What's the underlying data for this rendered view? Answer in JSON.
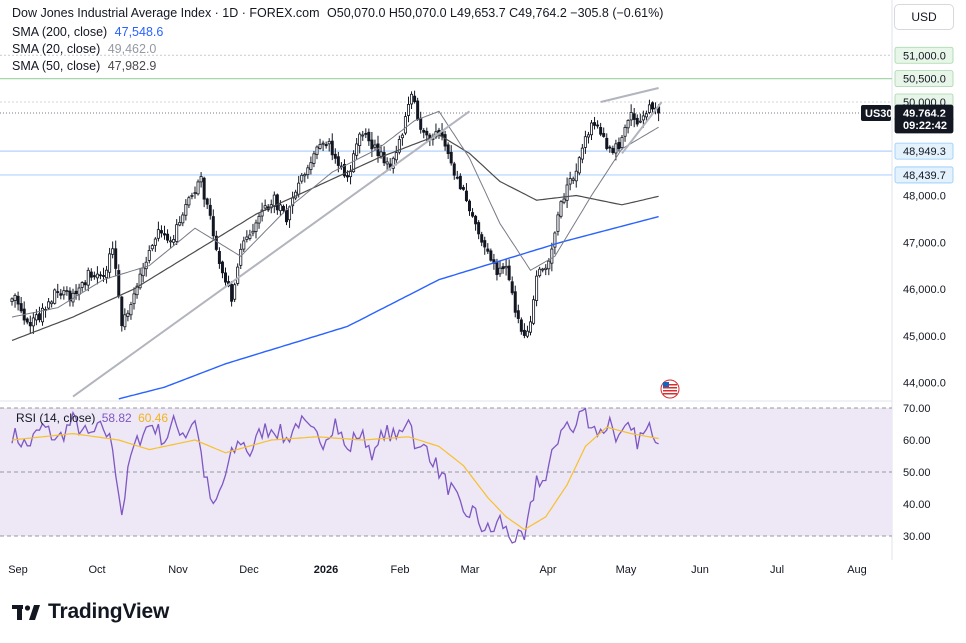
{
  "header": {
    "title": "Dow Jones Industrial Average Index · 1D · FOREX.com",
    "ohlc": "O50,070.0  H50,070.0  L49,653.7  C49,764.2  −305.8 (−0.61%)",
    "sma200_label": "SMA (200, close)",
    "sma200_value": "47,548.6",
    "sma20_label": "SMA (20, close)",
    "sma20_value": "49,462.0",
    "sma50_label": "SMA (50, close)",
    "sma50_value": "47,982.9",
    "currency": "USD"
  },
  "rsi_header": {
    "label": "RSI (14, close)",
    "value": "58.82",
    "ma_value": "60.46"
  },
  "branding": {
    "name": "TradingView"
  },
  "colors": {
    "candle": "#131722",
    "sma200": "#2962ff",
    "sma20": "#787b86",
    "sma50": "#4c4c4c",
    "rsi": "#7e57c2",
    "rsi_ma": "#f7c02d",
    "rsi_band": "#ede7f6",
    "level_line": "#b2d3ff"
  },
  "chart_data": [
    {
      "type": "candlestick",
      "title": "Dow Jones Industrial Average Index · 1D · FOREX.com",
      "x_tick_labels": [
        "Sep",
        "Oct",
        "Nov",
        "Dec",
        "2026",
        "Feb",
        "Mar",
        "Apr",
        "May",
        "Jun",
        "Jul",
        "Aug"
      ],
      "y_tick_labels": [
        "44,000.0",
        "45,000.0",
        "46,000.0",
        "47,000.0",
        "48,000.0"
      ],
      "ylim": [
        43700,
        51400
      ],
      "price_labels": [
        {
          "text": "51,000.0",
          "value": 51000,
          "style": "green"
        },
        {
          "text": "50,500.0",
          "value": 50500,
          "style": "green"
        },
        {
          "text": "50,000.0",
          "value": 50000,
          "style": "green"
        },
        {
          "text": "49,764.2",
          "value": 49764.2,
          "style": "dark"
        },
        {
          "text": "09:22:42",
          "value": 49764.2,
          "style": "dark"
        },
        {
          "text": "48,949.3",
          "value": 48949.3,
          "style": "blue"
        },
        {
          "text": "48,439.7",
          "value": 48439.7,
          "style": "blue"
        }
      ],
      "symbol_label": "US30",
      "horizontal_levels": [
        {
          "value": 50500,
          "color": "#a5d6a7"
        },
        {
          "value": 48949.3,
          "color": "#b2d3ff"
        },
        {
          "value": 48439.7,
          "color": "#b2d3ff"
        }
      ],
      "close_keypoints": [
        [
          0,
          45900
        ],
        [
          5,
          45200
        ],
        [
          10,
          45500
        ],
        [
          15,
          46000
        ],
        [
          20,
          45800
        ],
        [
          25,
          46300
        ],
        [
          30,
          46200
        ],
        [
          33,
          46900
        ],
        [
          36,
          45200
        ],
        [
          40,
          45900
        ],
        [
          45,
          46800
        ],
        [
          48,
          47200
        ],
        [
          52,
          47000
        ],
        [
          55,
          47500
        ],
        [
          58,
          47900
        ],
        [
          62,
          48300
        ],
        [
          66,
          47200
        ],
        [
          69,
          46300
        ],
        [
          72,
          45800
        ],
        [
          75,
          46900
        ],
        [
          78,
          47200
        ],
        [
          82,
          47700
        ],
        [
          86,
          47900
        ],
        [
          90,
          47500
        ],
        [
          94,
          48200
        ],
        [
          98,
          48700
        ],
        [
          102,
          49200
        ],
        [
          106,
          48900
        ],
        [
          110,
          48300
        ],
        [
          113,
          49200
        ],
        [
          116,
          49300
        ],
        [
          120,
          48900
        ],
        [
          124,
          48600
        ],
        [
          128,
          49300
        ],
        [
          131,
          50200
        ],
        [
          134,
          49500
        ],
        [
          137,
          49200
        ],
        [
          140,
          49300
        ],
        [
          143,
          48900
        ],
        [
          146,
          48300
        ],
        [
          149,
          47900
        ],
        [
          152,
          47400
        ],
        [
          156,
          46800
        ],
        [
          159,
          46400
        ],
        [
          162,
          46500
        ],
        [
          165,
          45600
        ],
        [
          167,
          45000
        ],
        [
          170,
          45200
        ],
        [
          172,
          46300
        ],
        [
          175,
          46500
        ],
        [
          177,
          46900
        ],
        [
          179,
          47600
        ],
        [
          182,
          48200
        ],
        [
          185,
          48500
        ],
        [
          188,
          49200
        ],
        [
          191,
          49600
        ],
        [
          194,
          49200
        ],
        [
          197,
          48900
        ],
        [
          200,
          49200
        ],
        [
          203,
          49700
        ],
        [
          206,
          49500
        ],
        [
          209,
          49900
        ],
        [
          212,
          49764.2
        ]
      ],
      "series": [
        {
          "name": "SMA (200, close)",
          "keypoints": [
            [
              35,
              43650
            ],
            [
              50,
              43900
            ],
            [
              70,
              44400
            ],
            [
              90,
              44800
            ],
            [
              110,
              45200
            ],
            [
              125,
              45700
            ],
            [
              140,
              46200
            ],
            [
              160,
              46600
            ],
            [
              180,
              47000
            ],
            [
              212,
              47548.6
            ]
          ]
        },
        {
          "name": "SMA (50, close)",
          "keypoints": [
            [
              0,
              44900
            ],
            [
              20,
              45400
            ],
            [
              40,
              46000
            ],
            [
              60,
              46800
            ],
            [
              80,
              47600
            ],
            [
              100,
              48200
            ],
            [
              120,
              48800
            ],
            [
              140,
              49300
            ],
            [
              150,
              48900
            ],
            [
              160,
              48300
            ],
            [
              172,
              47900
            ],
            [
              185,
              48000
            ],
            [
              200,
              47800
            ],
            [
              212,
              47982.9
            ]
          ]
        },
        {
          "name": "SMA (20, close)",
          "keypoints": [
            [
              0,
              45400
            ],
            [
              15,
              45600
            ],
            [
              30,
              46200
            ],
            [
              45,
              46500
            ],
            [
              60,
              47300
            ],
            [
              75,
              46700
            ],
            [
              90,
              47700
            ],
            [
              105,
              48500
            ],
            [
              120,
              49000
            ],
            [
              132,
              49600
            ],
            [
              140,
              49800
            ],
            [
              150,
              48800
            ],
            [
              160,
              47400
            ],
            [
              170,
              46400
            ],
            [
              178,
              46700
            ],
            [
              190,
              48000
            ],
            [
              200,
              49000
            ],
            [
              212,
              49462.0
            ]
          ]
        }
      ],
      "trendlines": [
        {
          "points": [
            [
              20,
              43700
            ],
            [
              150,
              49800
            ]
          ]
        },
        {
          "points": [
            [
              193,
              50000
            ],
            [
              212,
              50300
            ]
          ]
        },
        {
          "points": [
            [
              200,
              48900
            ],
            [
              213,
              50000
            ]
          ]
        }
      ]
    },
    {
      "type": "line",
      "title": "RSI (14, close)",
      "y_tick_labels": [
        "30.00",
        "40.00",
        "50.00",
        "60.00",
        "70.00"
      ],
      "ylim": [
        27,
        73
      ],
      "band": [
        30,
        70
      ],
      "series": [
        {
          "name": "RSI (14, close)",
          "value": 58.82,
          "keypoints": [
            [
              0,
              62
            ],
            [
              5,
              58
            ],
            [
              10,
              64
            ],
            [
              15,
              60
            ],
            [
              20,
              66
            ],
            [
              25,
              61
            ],
            [
              30,
              64
            ],
            [
              33,
              58
            ],
            [
              36,
              37
            ],
            [
              39,
              55
            ],
            [
              43,
              63
            ],
            [
              46,
              65
            ],
            [
              50,
              60
            ],
            [
              53,
              65
            ],
            [
              57,
              62
            ],
            [
              60,
              67
            ],
            [
              63,
              50
            ],
            [
              66,
              38
            ],
            [
              69,
              46
            ],
            [
              72,
              55
            ],
            [
              75,
              60
            ],
            [
              78,
              56
            ],
            [
              82,
              63
            ],
            [
              86,
              64
            ],
            [
              90,
              60
            ],
            [
              94,
              66
            ],
            [
              98,
              62
            ],
            [
              102,
              60
            ],
            [
              106,
              66
            ],
            [
              110,
              56
            ],
            [
              113,
              62
            ],
            [
              116,
              60
            ],
            [
              119,
              55
            ],
            [
              122,
              63
            ],
            [
              126,
              60
            ],
            [
              130,
              68
            ],
            [
              133,
              56
            ],
            [
              136,
              58
            ],
            [
              139,
              52
            ],
            [
              142,
              47
            ],
            [
              145,
              43
            ],
            [
              148,
              36
            ],
            [
              151,
              38
            ],
            [
              154,
              33
            ],
            [
              157,
              31
            ],
            [
              160,
              35
            ],
            [
              163,
              30
            ],
            [
              166,
              29
            ],
            [
              168,
              28
            ],
            [
              170,
              38
            ],
            [
              172,
              48
            ],
            [
              175,
              47
            ],
            [
              178,
              58
            ],
            [
              181,
              66
            ],
            [
              184,
              62
            ],
            [
              187,
              70
            ],
            [
              190,
              65
            ],
            [
              193,
              62
            ],
            [
              196,
              66
            ],
            [
              199,
              60
            ],
            [
              202,
              63
            ],
            [
              205,
              60
            ],
            [
              208,
              62
            ],
            [
              210,
              64
            ],
            [
              212,
              58.82
            ]
          ]
        },
        {
          "name": "RSI MA",
          "value": 60.46,
          "keypoints": [
            [
              0,
              60
            ],
            [
              20,
              62
            ],
            [
              35,
              60
            ],
            [
              45,
              57
            ],
            [
              60,
              60
            ],
            [
              70,
              56
            ],
            [
              85,
              60
            ],
            [
              100,
              61
            ],
            [
              115,
              60
            ],
            [
              130,
              61
            ],
            [
              140,
              58
            ],
            [
              148,
              52
            ],
            [
              156,
              42
            ],
            [
              162,
              36
            ],
            [
              168,
              32
            ],
            [
              175,
              36
            ],
            [
              182,
              46
            ],
            [
              188,
              58
            ],
            [
              195,
              64
            ],
            [
              203,
              62
            ],
            [
              212,
              60.46
            ]
          ]
        }
      ]
    }
  ]
}
